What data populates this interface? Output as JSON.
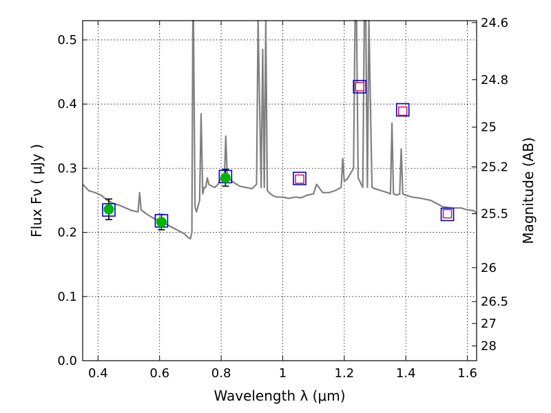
{
  "chart_data": {
    "type": "line",
    "title": "",
    "xlabel": "Wavelength  λ (μm)",
    "ylabel": "Flux  Fν  ( μJy )",
    "y2label": "Magnitude (AB)",
    "xlim": [
      0.35,
      1.63
    ],
    "ylim": [
      0.0,
      0.53
    ],
    "grid": true,
    "x_ticks": [
      0.4,
      0.6,
      0.8,
      1.0,
      1.2,
      1.4,
      1.6
    ],
    "x_tick_labels": [
      "0.4",
      "0.6",
      "0.8",
      "1",
      "1.2",
      "1.4",
      "1.6"
    ],
    "y_ticks": [
      0.0,
      0.1,
      0.2,
      0.3,
      0.4,
      0.5
    ],
    "y_tick_labels": [
      "0.0",
      "0.1",
      "0.2",
      "0.3",
      "0.4",
      "0.5"
    ],
    "y2_ticks": [
      {
        "label": "24.6",
        "flux": 0.527
      },
      {
        "label": "24.8",
        "flux": 0.438
      },
      {
        "label": "25",
        "flux": 0.364
      },
      {
        "label": "25.2",
        "flux": 0.302
      },
      {
        "label": "25.5",
        "flux": 0.229
      },
      {
        "label": "26",
        "flux": 0.145
      },
      {
        "label": "26.5",
        "flux": 0.092
      },
      {
        "label": "27",
        "flux": 0.058
      },
      {
        "label": "28",
        "flux": 0.023
      }
    ],
    "series": [
      {
        "kind": "model-spectrum",
        "color": "#808080",
        "x": [
          0.35,
          0.37,
          0.39,
          0.41,
          0.43,
          0.45,
          0.47,
          0.49,
          0.51,
          0.53,
          0.535,
          0.54,
          0.56,
          0.58,
          0.6,
          0.62,
          0.64,
          0.66,
          0.68,
          0.69,
          0.7,
          0.705,
          0.708,
          0.71,
          0.715,
          0.72,
          0.73,
          0.735,
          0.74,
          0.745,
          0.75,
          0.755,
          0.76,
          0.77,
          0.78,
          0.79,
          0.8,
          0.81,
          0.815,
          0.82,
          0.83,
          0.84,
          0.86,
          0.88,
          0.9,
          0.915,
          0.92,
          0.93,
          0.935,
          0.94,
          0.945,
          0.95,
          0.96,
          0.97,
          0.98,
          1.0,
          1.02,
          1.04,
          1.06,
          1.08,
          1.1,
          1.11,
          1.13,
          1.15,
          1.17,
          1.19,
          1.195,
          1.2,
          1.21,
          1.23,
          1.235,
          1.24,
          1.245,
          1.25,
          1.26,
          1.265,
          1.27,
          1.275,
          1.28,
          1.29,
          1.3,
          1.32,
          1.34,
          1.35,
          1.355,
          1.36,
          1.37,
          1.38,
          1.385,
          1.39,
          1.4,
          1.42,
          1.45,
          1.48,
          1.5,
          1.52,
          1.55,
          1.58,
          1.6,
          1.62,
          1.63
        ],
        "y": [
          0.275,
          0.265,
          0.262,
          0.258,
          0.25,
          0.245,
          0.242,
          0.238,
          0.234,
          0.232,
          0.262,
          0.235,
          0.228,
          0.222,
          0.218,
          0.213,
          0.208,
          0.203,
          0.198,
          0.193,
          0.19,
          0.2,
          0.53,
          0.53,
          0.24,
          0.232,
          0.25,
          0.385,
          0.26,
          0.27,
          0.27,
          0.285,
          0.275,
          0.272,
          0.27,
          0.275,
          0.285,
          0.28,
          0.35,
          0.285,
          0.282,
          0.278,
          0.272,
          0.27,
          0.268,
          0.275,
          0.53,
          0.27,
          0.485,
          0.27,
          0.53,
          0.265,
          0.26,
          0.257,
          0.255,
          0.255,
          0.253,
          0.255,
          0.254,
          0.258,
          0.26,
          0.275,
          0.262,
          0.262,
          0.265,
          0.27,
          0.315,
          0.28,
          0.283,
          0.3,
          0.53,
          0.53,
          0.285,
          0.28,
          0.27,
          0.53,
          0.53,
          0.27,
          0.53,
          0.27,
          0.268,
          0.265,
          0.262,
          0.26,
          0.37,
          0.26,
          0.258,
          0.26,
          0.33,
          0.26,
          0.258,
          0.255,
          0.253,
          0.25,
          0.245,
          0.24,
          0.238,
          0.238,
          0.235,
          0.234,
          0.23
        ]
      },
      {
        "kind": "observed-photometry",
        "marker": "circle",
        "color": "#00b400",
        "x": [
          0.435,
          0.606,
          0.814
        ],
        "y": [
          0.236,
          0.216,
          0.285
        ],
        "yerr": [
          0.016,
          0.012,
          0.013
        ]
      },
      {
        "kind": "model-photometry",
        "marker": "square",
        "edge_color": "#0000cc",
        "x": [
          0.435,
          0.606,
          0.814,
          1.055,
          1.25,
          1.39,
          1.535
        ],
        "y": [
          0.235,
          0.218,
          0.287,
          0.284,
          0.427,
          0.391,
          0.228
        ]
      },
      {
        "kind": "predicted-photometry",
        "marker": "square-open",
        "edge_color": "#e0003c",
        "x": [
          1.055,
          1.25,
          1.39,
          1.535
        ],
        "y": [
          0.283,
          0.427,
          0.389,
          0.229
        ]
      }
    ]
  }
}
